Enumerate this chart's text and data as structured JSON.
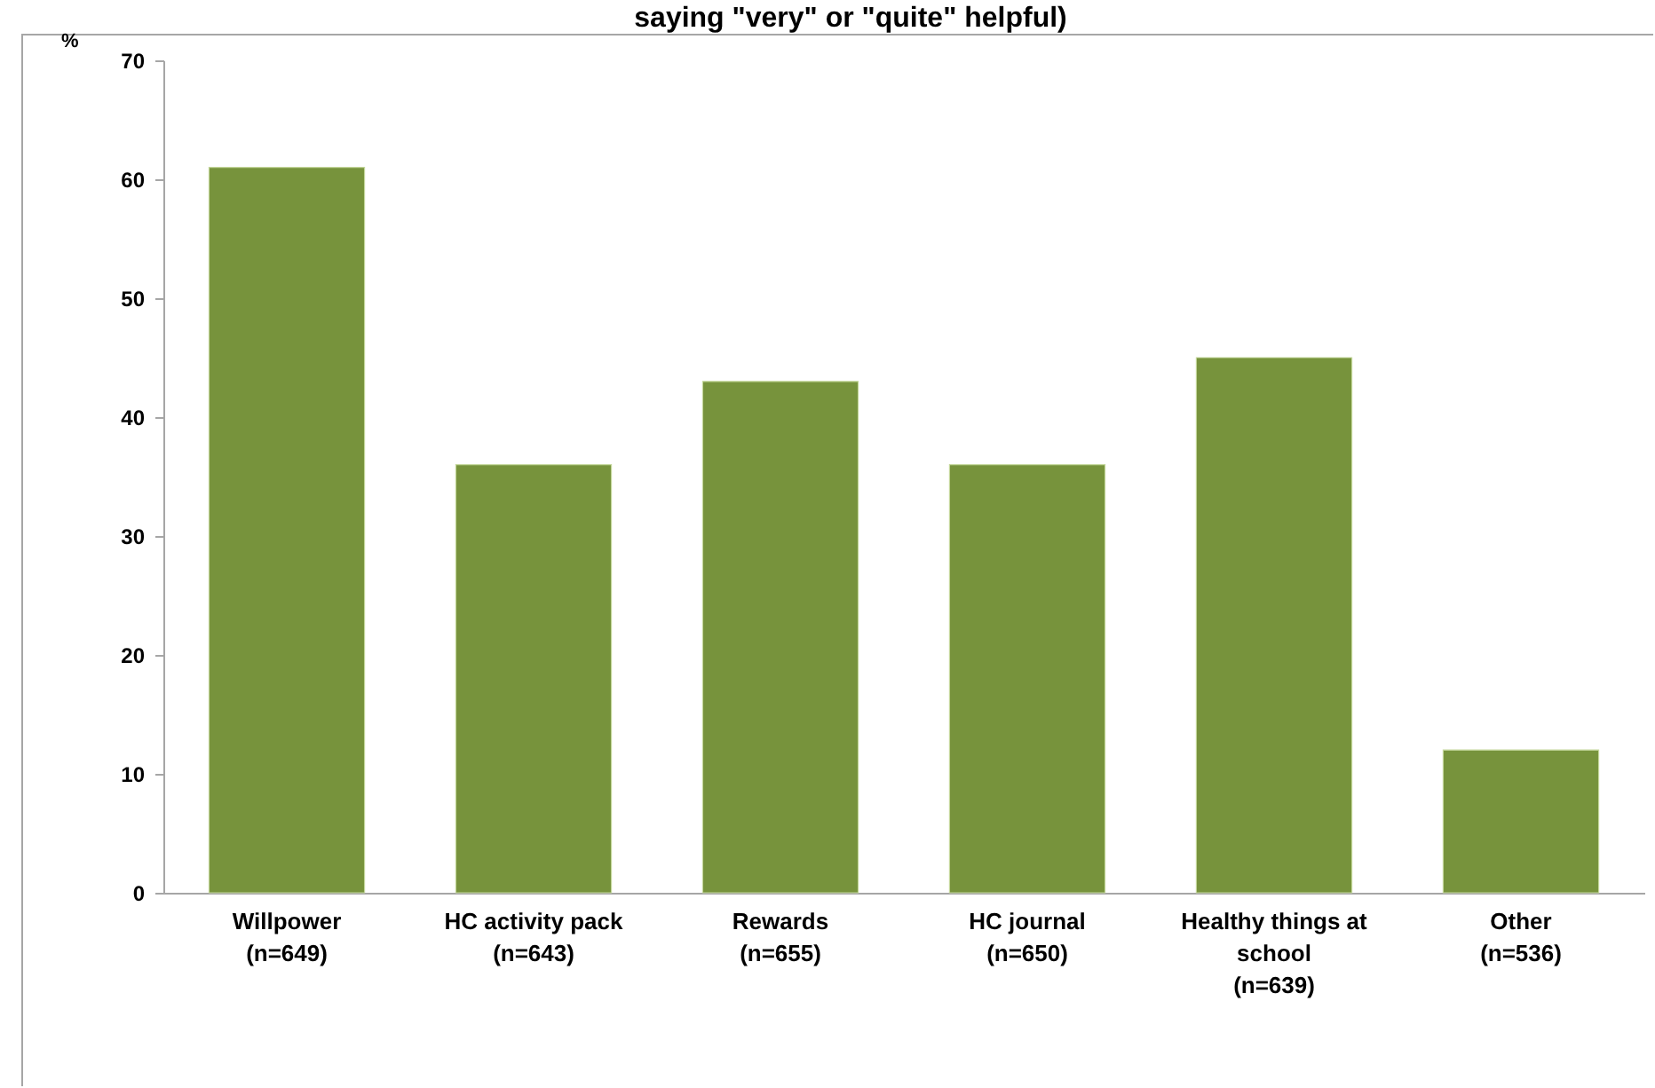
{
  "chart_data": {
    "type": "bar",
    "title": "saying \"very\" or \"quite\" helpful)",
    "ylabel": "%",
    "categories": [
      "Willpower\n(n=649)",
      "HC activity pack\n(n=643)",
      "Rewards\n(n=655)",
      "HC journal\n(n=650)",
      "Healthy things at\nschool\n(n=639)",
      "Other\n(n=536)"
    ],
    "values": [
      61,
      36,
      43,
      36,
      45,
      12
    ],
    "color": "#77933c",
    "ylim": [
      0,
      70
    ],
    "yticks": [
      0,
      10,
      20,
      30,
      40,
      50,
      60,
      70
    ]
  }
}
